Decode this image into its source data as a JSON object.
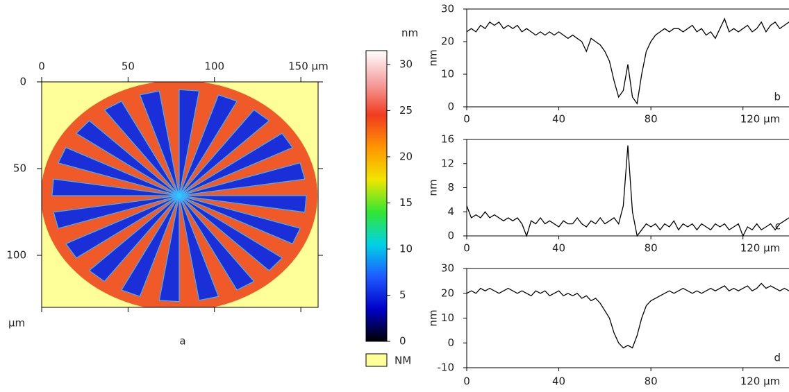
{
  "chart_data": [
    {
      "type": "image",
      "label": "a",
      "y_unit": "µm",
      "xlim": [
        0,
        160
      ],
      "ylim": [
        0,
        130
      ],
      "xticks": [
        0,
        50,
        100,
        {
          "value": 150,
          "label": "150 µm"
        }
      ],
      "yticks": [
        0,
        50,
        100
      ]
    },
    {
      "type": "colorbar",
      "unit": "nm",
      "lim": [
        0,
        31.5
      ],
      "ticks": [
        0,
        5,
        10,
        15,
        20,
        25,
        30
      ],
      "colors": [
        "#000000",
        "#0000c8",
        "#1e5aff",
        "#00d2e6",
        "#32e632",
        "#f0e600",
        "#ff9600",
        "#f03c1e",
        "#f5a0a0",
        "#ffffff"
      ],
      "legend": {
        "label": "NM",
        "color": "#ffff99"
      }
    },
    {
      "type": "line",
      "label": "b",
      "y_label": "nm",
      "color": "#000000",
      "xlim": [
        0,
        140
      ],
      "ylim": [
        0,
        30
      ],
      "xticks": [
        0,
        40,
        80,
        {
          "value": 120,
          "label": "120 µm"
        }
      ],
      "yticks": [
        0,
        10,
        20,
        30
      ],
      "x": [
        0,
        2,
        4,
        6,
        8,
        10,
        12,
        14,
        16,
        18,
        20,
        22,
        24,
        26,
        28,
        30,
        32,
        34,
        36,
        38,
        40,
        42,
        44,
        46,
        48,
        50,
        52,
        54,
        56,
        58,
        60,
        62,
        64,
        66,
        68,
        70,
        72,
        74,
        76,
        78,
        80,
        82,
        84,
        86,
        88,
        90,
        92,
        94,
        96,
        98,
        100,
        102,
        104,
        106,
        108,
        110,
        112,
        114,
        116,
        118,
        120,
        122,
        124,
        126,
        128,
        130,
        132,
        134,
        136,
        138,
        140
      ],
      "values": [
        23,
        24,
        23,
        25,
        24,
        26,
        25,
        26,
        24,
        25,
        24,
        25,
        23,
        24,
        23,
        22,
        23,
        22,
        23,
        22,
        23,
        22,
        21,
        22,
        21,
        20,
        17,
        21,
        20,
        19,
        17,
        14,
        8,
        3,
        5,
        13,
        3,
        1,
        10,
        17,
        20,
        22,
        23,
        24,
        23,
        24,
        24,
        23,
        24,
        25,
        23,
        24,
        22,
        23,
        21,
        24,
        27,
        23,
        24,
        23,
        24,
        25,
        23,
        24,
        26,
        23,
        25,
        26,
        24,
        25,
        26
      ]
    },
    {
      "type": "line",
      "label": "c",
      "y_label": "nm",
      "color": "#000000",
      "xlim": [
        0,
        140
      ],
      "ylim": [
        0,
        16
      ],
      "xticks": [
        0,
        40,
        80,
        {
          "value": 120,
          "label": "120 µm"
        }
      ],
      "yticks": [
        0,
        4,
        8,
        12,
        16
      ],
      "x": [
        0,
        2,
        4,
        6,
        8,
        10,
        12,
        14,
        16,
        18,
        20,
        22,
        24,
        26,
        28,
        30,
        32,
        34,
        36,
        38,
        40,
        42,
        44,
        46,
        48,
        50,
        52,
        54,
        56,
        58,
        60,
        62,
        64,
        66,
        68,
        70,
        72,
        74,
        76,
        78,
        80,
        82,
        84,
        86,
        88,
        90,
        92,
        94,
        96,
        98,
        100,
        102,
        104,
        106,
        108,
        110,
        112,
        114,
        116,
        118,
        120,
        122,
        124,
        126,
        128,
        130,
        132,
        134,
        136,
        138,
        140
      ],
      "values": [
        5,
        3,
        3.5,
        3,
        4,
        3,
        3.5,
        3,
        2.5,
        3,
        2.5,
        3,
        2,
        0,
        2.5,
        2,
        3,
        2,
        2.5,
        2,
        1.5,
        2.5,
        2,
        2,
        3,
        2,
        1.5,
        2.5,
        2,
        3,
        2,
        2.5,
        3,
        2,
        5,
        15,
        4,
        0,
        1,
        2,
        1.5,
        2,
        1,
        2,
        1.5,
        2.5,
        1,
        2,
        1.5,
        2,
        1,
        2,
        1.5,
        1,
        2,
        1.5,
        2,
        1,
        1.5,
        2,
        0,
        1.5,
        1,
        2,
        1,
        1.5,
        2,
        1,
        2,
        2.5,
        3
      ]
    },
    {
      "type": "line",
      "label": "d",
      "y_label": "nm",
      "color": "#000000",
      "xlim": [
        0,
        140
      ],
      "ylim": [
        -10,
        30
      ],
      "xticks": [
        0,
        40,
        80,
        {
          "value": 120,
          "label": "120 µm"
        }
      ],
      "yticks": [
        -10,
        0,
        10,
        20,
        30
      ],
      "x": [
        0,
        2,
        4,
        6,
        8,
        10,
        12,
        14,
        16,
        18,
        20,
        22,
        24,
        26,
        28,
        30,
        32,
        34,
        36,
        38,
        40,
        42,
        44,
        46,
        48,
        50,
        52,
        54,
        56,
        58,
        60,
        62,
        64,
        66,
        68,
        70,
        72,
        74,
        76,
        78,
        80,
        82,
        84,
        86,
        88,
        90,
        92,
        94,
        96,
        98,
        100,
        102,
        104,
        106,
        108,
        110,
        112,
        114,
        116,
        118,
        120,
        122,
        124,
        126,
        128,
        130,
        132,
        134,
        136,
        138,
        140
      ],
      "values": [
        20,
        21,
        20,
        22,
        21,
        22,
        21,
        20,
        21,
        22,
        21,
        20,
        21,
        20,
        19,
        21,
        20,
        21,
        19,
        20,
        21,
        19,
        20,
        19,
        20,
        18,
        19,
        17,
        18,
        16,
        13,
        10,
        4,
        0,
        -2,
        -1,
        -2,
        3,
        10,
        15,
        17,
        18,
        19,
        20,
        21,
        20,
        21,
        22,
        21,
        20,
        21,
        20,
        21,
        22,
        21,
        22,
        23,
        21,
        22,
        21,
        22,
        23,
        21,
        22,
        24,
        22,
        23,
        22,
        21,
        22,
        21
      ]
    }
  ]
}
